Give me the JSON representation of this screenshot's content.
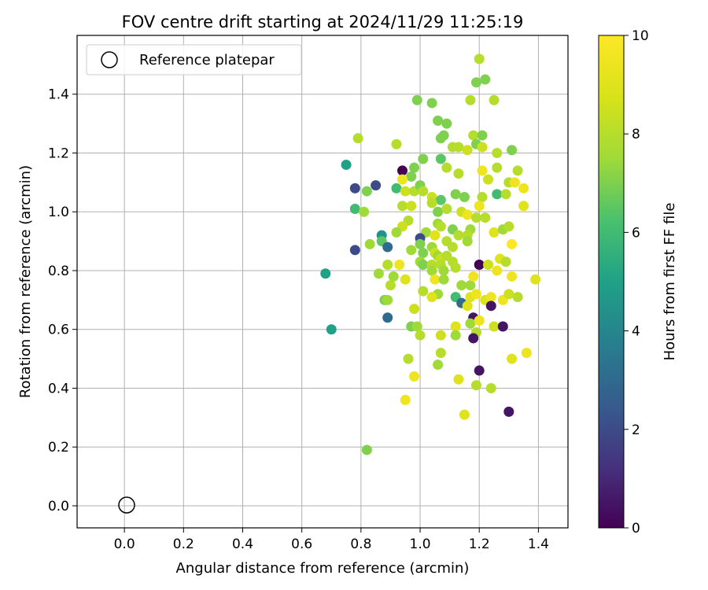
{
  "chart_data": {
    "type": "scatter",
    "title": "FOV centre drift starting at 2024/11/29 11:25:19",
    "xlabel": "Angular distance from reference (arcmin)",
    "ylabel": "Rotation from reference (arcmin)",
    "xlim": [
      -0.16,
      1.5
    ],
    "ylim": [
      -0.075,
      1.6
    ],
    "xticks": [
      "0.0",
      "0.2",
      "0.4",
      "0.6",
      "0.8",
      "1.0",
      "1.2",
      "1.4"
    ],
    "yticks": [
      "0.0",
      "0.2",
      "0.4",
      "0.6",
      "0.8",
      "1.0",
      "1.2",
      "1.4"
    ],
    "grid": true,
    "legend": {
      "position": "top-left",
      "label": "Reference platepar",
      "marker": "open-circle"
    },
    "reference_point": {
      "x": 0.0,
      "y": 0.0
    },
    "colorbar": {
      "label": "Hours from first FF file",
      "range": [
        0,
        10
      ],
      "ticks": [
        "0",
        "2",
        "4",
        "6",
        "8",
        "10"
      ],
      "colormap": "viridis"
    },
    "points": [
      [
        1.2,
        1.52,
        8.0
      ],
      [
        1.22,
        1.45,
        7.0
      ],
      [
        1.19,
        1.44,
        7.0
      ],
      [
        0.99,
        1.38,
        7.0
      ],
      [
        1.04,
        1.37,
        7.0
      ],
      [
        1.17,
        1.38,
        8.0
      ],
      [
        1.25,
        1.38,
        8.0
      ],
      [
        1.06,
        1.31,
        7.0
      ],
      [
        1.09,
        1.3,
        7.0
      ],
      [
        1.08,
        1.26,
        7.0
      ],
      [
        1.07,
        1.25,
        7.0
      ],
      [
        1.18,
        1.26,
        8.0
      ],
      [
        1.21,
        1.26,
        7.0
      ],
      [
        1.19,
        1.23,
        7.0
      ],
      [
        0.79,
        1.25,
        8.0
      ],
      [
        0.92,
        1.23,
        8.0
      ],
      [
        1.11,
        1.22,
        8.0
      ],
      [
        1.13,
        1.22,
        8.0
      ],
      [
        1.16,
        1.21,
        8.5
      ],
      [
        1.21,
        1.22,
        8.5
      ],
      [
        1.31,
        1.21,
        7.0
      ],
      [
        1.26,
        1.2,
        8.0
      ],
      [
        1.01,
        1.18,
        7.0
      ],
      [
        1.07,
        1.18,
        6.5
      ],
      [
        1.09,
        1.15,
        8.0
      ],
      [
        1.26,
        1.15,
        8.0
      ],
      [
        0.75,
        1.16,
        5.0
      ],
      [
        0.98,
        1.15,
        7.0
      ],
      [
        0.97,
        1.12,
        7.0
      ],
      [
        0.94,
        1.14,
        0.0
      ],
      [
        1.13,
        1.13,
        8.0
      ],
      [
        1.21,
        1.14,
        9.5
      ],
      [
        1.33,
        1.14,
        8.0
      ],
      [
        0.94,
        1.11,
        9.5
      ],
      [
        1.23,
        1.11,
        8.5
      ],
      [
        1.3,
        1.1,
        8.0
      ],
      [
        1.32,
        1.1,
        9.5
      ],
      [
        0.85,
        1.09,
        2.0
      ],
      [
        0.92,
        1.08,
        6.0
      ],
      [
        0.95,
        1.07,
        8.5
      ],
      [
        0.98,
        1.07,
        8.0
      ],
      [
        1.0,
        1.09,
        7.0
      ],
      [
        1.01,
        1.07,
        8.0
      ],
      [
        0.78,
        1.08,
        2.0
      ],
      [
        1.35,
        1.08,
        9.5
      ],
      [
        1.21,
        1.05,
        8.0
      ],
      [
        1.26,
        1.06,
        6.0
      ],
      [
        1.29,
        1.06,
        8.0
      ],
      [
        0.82,
        1.07,
        7.0
      ],
      [
        1.04,
        1.05,
        8.5
      ],
      [
        1.07,
        1.04,
        6.5
      ],
      [
        1.12,
        1.06,
        7.0
      ],
      [
        1.15,
        1.05,
        7.0
      ],
      [
        1.04,
        1.03,
        8.0
      ],
      [
        0.78,
        1.01,
        6.0
      ],
      [
        0.81,
        1.0,
        7.5
      ],
      [
        0.94,
        1.02,
        8.0
      ],
      [
        0.97,
        1.02,
        8.5
      ],
      [
        1.06,
        1.0,
        7.0
      ],
      [
        1.09,
        1.01,
        8.0
      ],
      [
        1.14,
        1.0,
        8.5
      ],
      [
        1.2,
        1.02,
        9.5
      ],
      [
        1.35,
        1.02,
        9.0
      ],
      [
        1.16,
        0.99,
        9.5
      ],
      [
        1.19,
        0.98,
        8.0
      ],
      [
        1.22,
        0.98,
        8.0
      ],
      [
        0.96,
        0.97,
        8.0
      ],
      [
        1.06,
        0.96,
        7.5
      ],
      [
        1.07,
        0.95,
        8.0
      ],
      [
        0.94,
        0.95,
        8.5
      ],
      [
        0.92,
        0.93,
        7.5
      ],
      [
        1.02,
        0.93,
        7.5
      ],
      [
        1.11,
        0.94,
        7.0
      ],
      [
        1.17,
        0.94,
        7.5
      ],
      [
        1.25,
        0.93,
        9.0
      ],
      [
        1.28,
        0.94,
        7.5
      ],
      [
        1.3,
        0.95,
        8.0
      ],
      [
        0.87,
        0.92,
        4.5
      ],
      [
        1.05,
        0.92,
        9.0
      ],
      [
        1.13,
        0.92,
        8.0
      ],
      [
        1.16,
        0.92,
        8.0
      ],
      [
        1.0,
        0.91,
        2.0
      ],
      [
        1.09,
        0.9,
        8.0
      ],
      [
        0.87,
        0.9,
        6.5
      ],
      [
        0.83,
        0.89,
        7.5
      ],
      [
        1.0,
        0.89,
        7.0
      ],
      [
        1.04,
        0.88,
        7.5
      ],
      [
        1.11,
        0.88,
        8.0
      ],
      [
        1.16,
        0.9,
        7.5
      ],
      [
        1.31,
        0.89,
        10.0
      ],
      [
        0.89,
        0.88,
        3.0
      ],
      [
        0.97,
        0.87,
        7.5
      ],
      [
        0.78,
        0.87,
        2.0
      ],
      [
        1.01,
        0.86,
        7.0
      ],
      [
        1.05,
        0.86,
        8.5
      ],
      [
        1.06,
        0.85,
        7.5
      ],
      [
        1.07,
        0.84,
        8.5
      ],
      [
        1.09,
        0.85,
        8.0
      ],
      [
        1.11,
        0.83,
        8.0
      ],
      [
        1.0,
        0.83,
        7.5
      ],
      [
        1.01,
        0.82,
        7.0
      ],
      [
        1.04,
        0.82,
        8.0
      ],
      [
        1.07,
        0.82,
        8.0
      ],
      [
        1.2,
        0.82,
        0.0
      ],
      [
        1.23,
        0.82,
        8.5
      ],
      [
        1.27,
        0.84,
        9.0
      ],
      [
        1.29,
        0.83,
        8.0
      ],
      [
        0.89,
        0.82,
        8.0
      ],
      [
        0.93,
        0.82,
        9.5
      ],
      [
        1.26,
        0.8,
        9.5
      ],
      [
        1.04,
        0.8,
        7.5
      ],
      [
        1.08,
        0.8,
        7.5
      ],
      [
        1.12,
        0.81,
        8.0
      ],
      [
        0.86,
        0.79,
        7.5
      ],
      [
        0.91,
        0.78,
        7.5
      ],
      [
        0.95,
        0.77,
        9.0
      ],
      [
        1.05,
        0.77,
        9.5
      ],
      [
        1.08,
        0.77,
        7.5
      ],
      [
        1.14,
        0.75,
        7.5
      ],
      [
        1.17,
        0.75,
        7.5
      ],
      [
        1.18,
        0.78,
        9.5
      ],
      [
        1.31,
        0.78,
        9.5
      ],
      [
        1.39,
        0.77,
        9.0
      ],
      [
        0.9,
        0.75,
        8.0
      ],
      [
        1.01,
        0.73,
        8.0
      ],
      [
        1.06,
        0.72,
        7.5
      ],
      [
        1.04,
        0.71,
        9.0
      ],
      [
        1.12,
        0.71,
        6.0
      ],
      [
        1.14,
        0.69,
        3.0
      ],
      [
        1.17,
        0.71,
        9.0
      ],
      [
        1.19,
        0.72,
        9.5
      ],
      [
        1.22,
        0.7,
        9.0
      ],
      [
        1.24,
        0.71,
        9.5
      ],
      [
        1.24,
        0.68,
        0.5
      ],
      [
        1.28,
        0.7,
        9.5
      ],
      [
        1.3,
        0.72,
        8.5
      ],
      [
        1.33,
        0.71,
        8.0
      ],
      [
        1.16,
        0.68,
        9.0
      ],
      [
        0.88,
        0.7,
        7.0
      ],
      [
        0.89,
        0.7,
        7.5
      ],
      [
        0.98,
        0.67,
        8.5
      ],
      [
        1.18,
        0.64,
        0.5
      ],
      [
        0.89,
        0.64,
        3.0
      ],
      [
        1.17,
        0.62,
        7.5
      ],
      [
        1.2,
        0.63,
        9.5
      ],
      [
        1.12,
        0.61,
        9.0
      ],
      [
        1.25,
        0.61,
        8.5
      ],
      [
        1.28,
        0.61,
        0.5
      ],
      [
        0.97,
        0.61,
        7.0
      ],
      [
        0.99,
        0.61,
        7.5
      ],
      [
        0.7,
        0.6,
        5.0
      ],
      [
        1.0,
        0.58,
        8.0
      ],
      [
        1.07,
        0.58,
        8.5
      ],
      [
        1.12,
        0.58,
        7.5
      ],
      [
        1.19,
        0.59,
        8.0
      ],
      [
        1.18,
        0.57,
        0.5
      ],
      [
        1.07,
        0.52,
        8.0
      ],
      [
        1.36,
        0.52,
        9.5
      ],
      [
        0.96,
        0.5,
        8.0
      ],
      [
        1.31,
        0.5,
        9.0
      ],
      [
        1.06,
        0.48,
        7.5
      ],
      [
        1.2,
        0.46,
        0.5
      ],
      [
        0.98,
        0.44,
        9.5
      ],
      [
        1.13,
        0.43,
        9.0
      ],
      [
        1.19,
        0.41,
        8.0
      ],
      [
        1.24,
        0.4,
        8.0
      ],
      [
        0.95,
        0.36,
        9.5
      ],
      [
        1.3,
        0.32,
        0.5
      ],
      [
        1.15,
        0.31,
        9.0
      ],
      [
        0.68,
        0.79,
        5.0
      ],
      [
        0.82,
        0.19,
        7.0
      ]
    ]
  }
}
